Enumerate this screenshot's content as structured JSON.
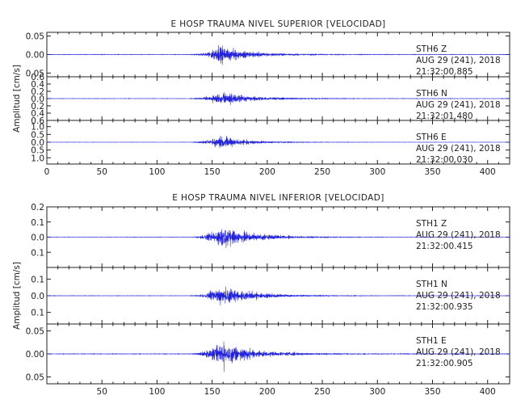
{
  "chart_data": [
    {
      "type": "line",
      "title": "E HOSP TRAUMA NIVEL SUPERIOR [VELOCIDAD]",
      "ylabel": "Amplitud [cm/s]",
      "xlim": [
        0,
        420
      ],
      "xticks": [
        0,
        50,
        100,
        150,
        200,
        250,
        300,
        350,
        400
      ],
      "line_color": "#2222dd",
      "traces": [
        {
          "station": "STH6",
          "component": "Z",
          "date": "AUG 29 (241), 2018",
          "time": "21:32:00.885",
          "ylim": [
            -0.06,
            0.06
          ],
          "yticks": [
            0.05,
            0.0,
            -0.05
          ],
          "yticklabels": [
            "0.05",
            "0.00",
            "0.05"
          ],
          "envelope": {
            "onset": 128,
            "peak": 158,
            "peak_amp": 0.055,
            "coda": 60,
            "noise": 0.0015
          }
        },
        {
          "station": "STH6",
          "component": "N",
          "date": "AUG 29 (241), 2018",
          "time": "21:32:01.480",
          "ylim": [
            -0.6,
            0.6
          ],
          "yticks": [
            0.6,
            0.4,
            0.2,
            0.0,
            -0.2,
            -0.4,
            -0.6
          ],
          "yticklabels": [
            "0.6",
            "0.4",
            "0.2",
            "0.0",
            "0.2",
            "0.4",
            "0.6"
          ],
          "envelope": {
            "onset": 128,
            "peak": 162,
            "peak_amp": 0.45,
            "coda": 60,
            "noise": 0.012
          }
        },
        {
          "station": "STH6",
          "component": "E",
          "date": "AUG 29 (241), 2018",
          "time": "21:32:00.030",
          "ylim": [
            -1.4,
            1.4
          ],
          "yticks": [
            1.0,
            0.5,
            0.0,
            -0.5,
            -1.0
          ],
          "yticklabels": [
            "1.0",
            "0.5",
            "0.0",
            "0.5",
            "1.0"
          ],
          "envelope": {
            "onset": 128,
            "peak": 158,
            "peak_amp": 1.0,
            "coda": 50,
            "noise": 0.02
          }
        }
      ]
    },
    {
      "type": "line",
      "title": "E HOSP TRAUMA NIVEL INFERIOR [VELOCIDAD]",
      "ylabel": "Amplitud [cm/s]",
      "xlim": [
        0,
        420
      ],
      "xticks": [
        50,
        100,
        150,
        200,
        250,
        300,
        350,
        400
      ],
      "line_color": "#2222dd",
      "traces": [
        {
          "station": "STH1",
          "component": "Z",
          "date": "AUG 29 (241), 2018",
          "time": "21:32:00.415",
          "ylim": [
            -0.2,
            0.2
          ],
          "yticks": [
            0.2,
            0.1,
            0.0,
            -0.1
          ],
          "yticklabels": [
            "0.2",
            "0.1",
            "0.0",
            "0.1"
          ],
          "envelope": {
            "onset": 130,
            "peak": 160,
            "peak_amp": 0.19,
            "coda": 60,
            "noise": 0.003
          }
        },
        {
          "station": "STH1",
          "component": "N",
          "date": "AUG 29 (241), 2018",
          "time": "21:32:00.935",
          "ylim": [
            -0.17,
            0.17
          ],
          "yticks": [
            0.1,
            0.0,
            -0.1
          ],
          "yticklabels": [
            "0.1",
            "0.0",
            "0.1"
          ],
          "envelope": {
            "onset": 128,
            "peak": 160,
            "peak_amp": 0.15,
            "coda": 60,
            "noise": 0.003
          }
        },
        {
          "station": "STH1",
          "component": "E",
          "date": "AUG 29 (241), 2018",
          "time": "21:32:00.905",
          "ylim": [
            -0.065,
            0.065
          ],
          "yticks": [
            0.05,
            0.0,
            -0.05
          ],
          "yticklabels": [
            "0.05",
            "0.00",
            "0.05"
          ],
          "envelope": {
            "onset": 128,
            "peak": 160,
            "peak_amp": 0.062,
            "coda": 65,
            "noise": 0.0015
          }
        }
      ]
    }
  ]
}
